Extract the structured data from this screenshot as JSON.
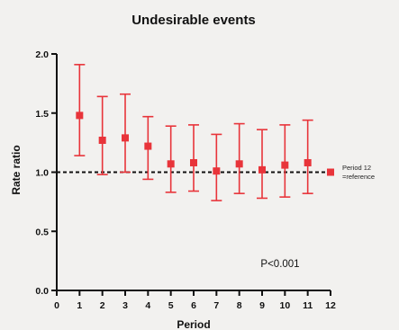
{
  "chart_data": {
    "type": "scatter",
    "title": "Undesirable events",
    "xlabel": "Period",
    "ylabel": "Rate ratio",
    "xlim": [
      0,
      12
    ],
    "ylim": [
      0.0,
      2.0
    ],
    "x_ticks": [
      0,
      1,
      2,
      3,
      4,
      5,
      6,
      7,
      8,
      9,
      10,
      11,
      12
    ],
    "y_ticks": [
      "0.0",
      "0.5",
      "1.0",
      "1.5",
      "2.0"
    ],
    "series": [
      {
        "x": [
          1,
          2,
          3,
          4,
          5,
          6,
          7,
          8,
          9,
          10,
          11,
          12
        ],
        "values": [
          1.48,
          1.27,
          1.29,
          1.22,
          1.07,
          1.08,
          1.01,
          1.07,
          1.02,
          1.06,
          1.08,
          1.0
        ],
        "lower": [
          1.14,
          0.98,
          1.0,
          0.94,
          0.83,
          0.84,
          0.76,
          0.82,
          0.78,
          0.79,
          0.82,
          1.0
        ],
        "upper": [
          1.91,
          1.64,
          1.66,
          1.47,
          1.39,
          1.4,
          1.32,
          1.41,
          1.36,
          1.4,
          1.44,
          1.0
        ]
      }
    ],
    "reference_line": {
      "y": 1.0,
      "style": "dashed"
    },
    "reference_note": [
      "Period 12",
      "=reference"
    ],
    "annotation": "P<0.001",
    "marker_color": "#e8343a",
    "grid": false
  }
}
